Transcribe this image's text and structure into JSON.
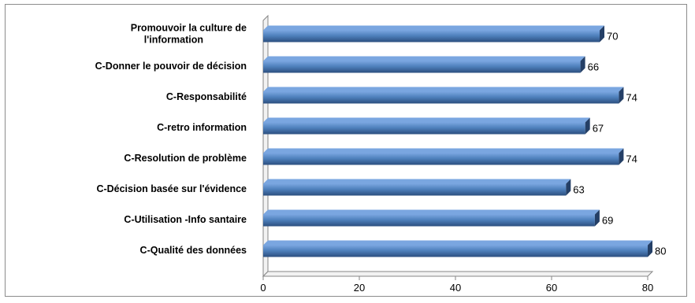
{
  "chart_data": {
    "type": "bar",
    "orientation": "horizontal",
    "style": "3d-clustered",
    "categories": [
      "Promouvoir la culture de l'information",
      "C-Donner le pouvoir de décision",
      "C-Responsabilité",
      "C-retro information",
      "C-Resolution de problème",
      "C-Décision basée sur l'évidence",
      "C-Utilisation -Info santaire",
      "C-Qualité des données"
    ],
    "category_lines": [
      [
        "Promouvoir la culture de",
        "l'information"
      ],
      [
        "C-Donner le pouvoir de décision"
      ],
      [
        "C-Responsabilité"
      ],
      [
        "C-retro information"
      ],
      [
        "C-Resolution de problème"
      ],
      [
        "C-Décision basée sur l'évidence"
      ],
      [
        "C-Utilisation -Info santaire"
      ],
      [
        "C-Qualité des données"
      ]
    ],
    "values": [
      70,
      66,
      74,
      67,
      74,
      63,
      69,
      80
    ],
    "xlim": [
      0,
      80
    ],
    "xticks": [
      "0",
      "20",
      "40",
      "60",
      "80"
    ],
    "title": "",
    "xlabel": "",
    "ylabel": "",
    "grid": false,
    "legend": "none",
    "colors": {
      "bar_top": "#7aa6e0",
      "bar_mid": "#4f81bd",
      "bar_bottom": "#2c4f7f",
      "bar_end": "#243f66",
      "axis": "#868686"
    }
  }
}
